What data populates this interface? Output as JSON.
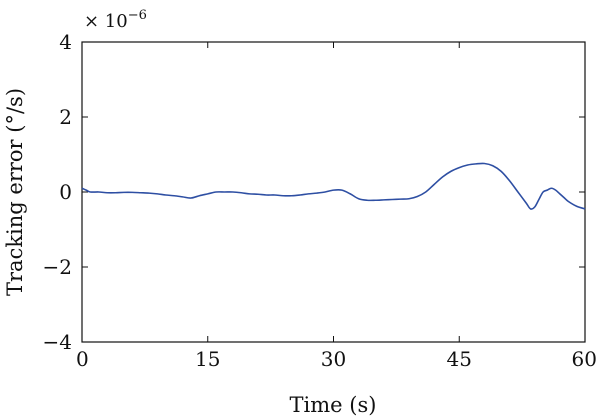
{
  "chart_data": {
    "type": "line",
    "title": "",
    "xlabel": "Time (s)",
    "ylabel": "Tracking error (°/s)",
    "y_multiplier": {
      "base": "× 10",
      "exponent": "−6"
    },
    "xlim": [
      0,
      60
    ],
    "ylim": [
      -4,
      4
    ],
    "x_ticks": [
      0,
      15,
      30,
      45,
      60
    ],
    "x_tick_labels": [
      "0",
      "15",
      "30",
      "45",
      "60"
    ],
    "y_ticks": [
      -4,
      -2,
      0,
      2,
      4
    ],
    "y_tick_labels": [
      "−4",
      "−2",
      "0",
      "2",
      "4"
    ],
    "grid": false,
    "line_color": "#2e4fa3",
    "series": [
      {
        "x": [
          0,
          0.5,
          1,
          2,
          3,
          4,
          5,
          6,
          7,
          8,
          9,
          10,
          11,
          12,
          13,
          14,
          15,
          16,
          17,
          18,
          19,
          20,
          21,
          22,
          23,
          24,
          25,
          26,
          27,
          28,
          29,
          30,
          31,
          32,
          33,
          34,
          35,
          36,
          37,
          38,
          39,
          40,
          41,
          42,
          43,
          44,
          45,
          46,
          47,
          48,
          49,
          50,
          51,
          52,
          53,
          53.5,
          54,
          54.5,
          55,
          55.5,
          56,
          56.5,
          57,
          57.5,
          58,
          59,
          60
        ],
        "y": [
          0.1,
          0.05,
          0.0,
          0.0,
          -0.02,
          -0.02,
          -0.01,
          -0.01,
          -0.02,
          -0.03,
          -0.05,
          -0.08,
          -0.1,
          -0.13,
          -0.16,
          -0.1,
          -0.05,
          0.0,
          0.0,
          0.0,
          -0.02,
          -0.05,
          -0.06,
          -0.08,
          -0.08,
          -0.1,
          -0.1,
          -0.08,
          -0.05,
          -0.03,
          0.0,
          0.05,
          0.05,
          -0.05,
          -0.18,
          -0.22,
          -0.22,
          -0.21,
          -0.2,
          -0.19,
          -0.18,
          -0.12,
          0.0,
          0.2,
          0.4,
          0.55,
          0.65,
          0.72,
          0.75,
          0.76,
          0.7,
          0.55,
          0.3,
          0.0,
          -0.3,
          -0.45,
          -0.4,
          -0.2,
          0.0,
          0.05,
          0.1,
          0.05,
          -0.05,
          -0.15,
          -0.25,
          -0.38,
          -0.45
        ]
      }
    ]
  }
}
